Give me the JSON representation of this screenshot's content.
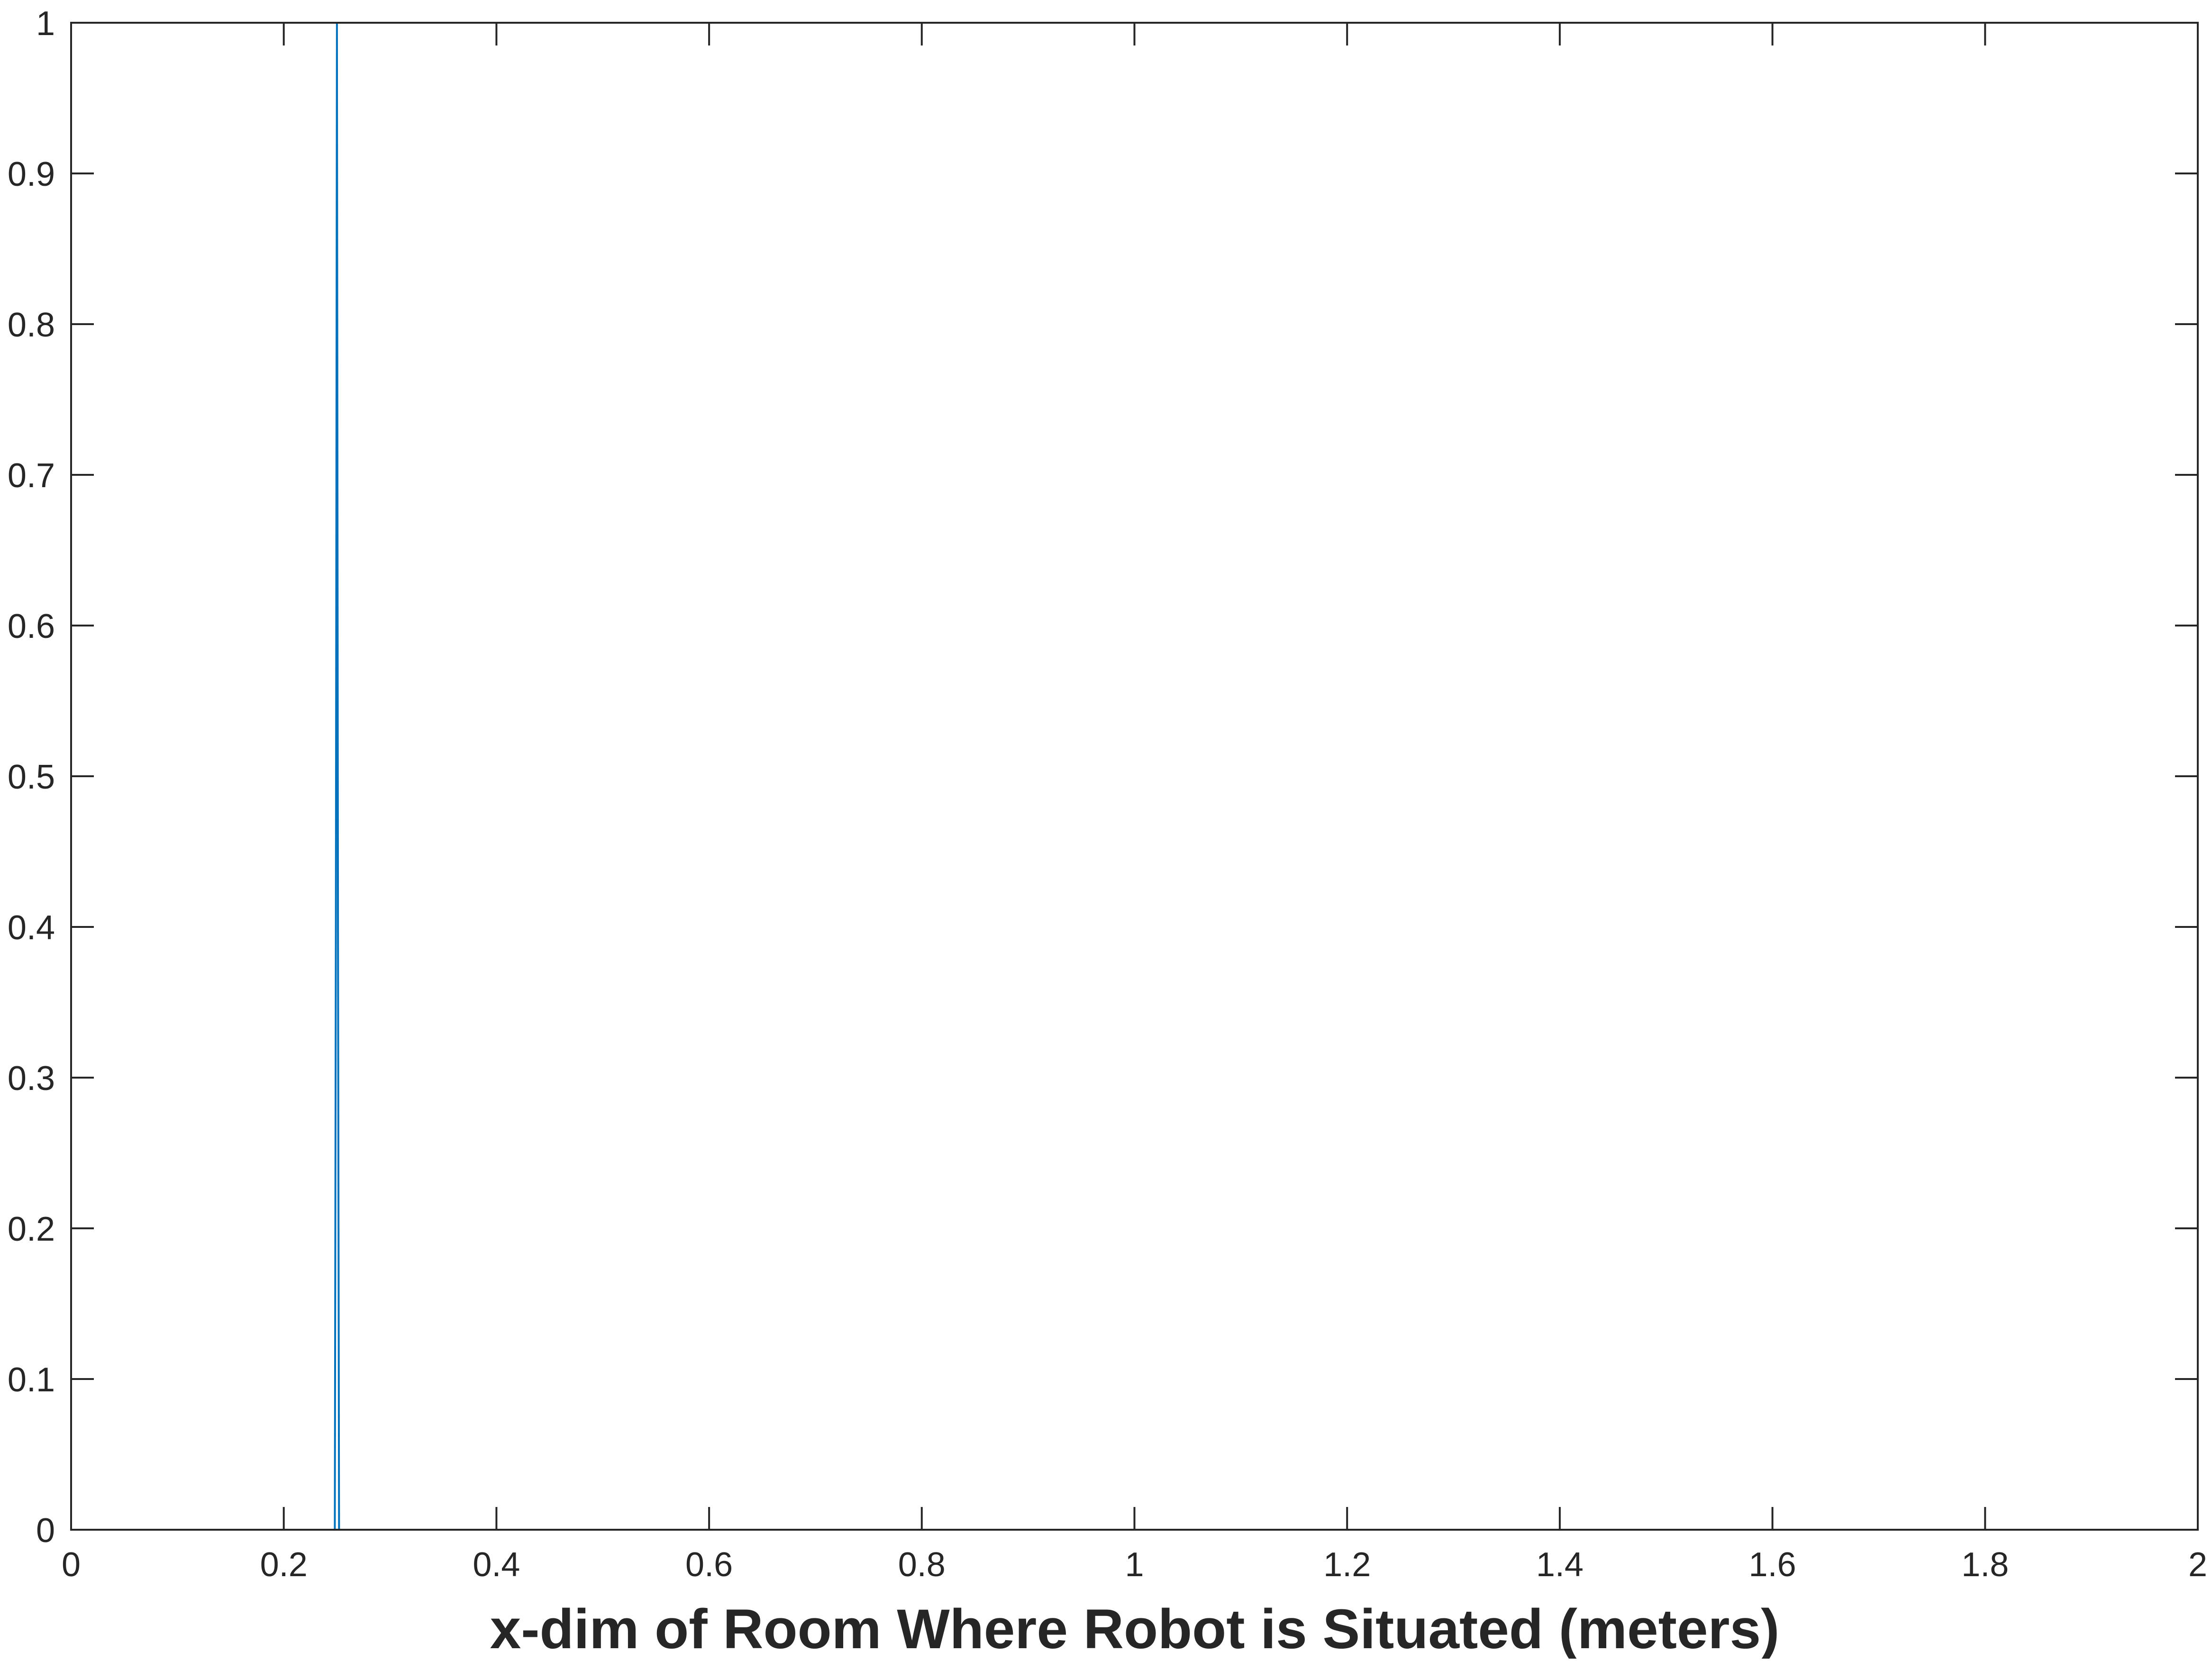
{
  "chart_data": {
    "type": "line",
    "title": "",
    "xlabel": "x-dim of Room Where Robot is Situated (meters)",
    "ylabel": "",
    "xlim": [
      0,
      2
    ],
    "ylim": [
      0,
      1
    ],
    "grid": false,
    "x_ticks": [
      0,
      0.2,
      0.4,
      0.6,
      0.8,
      1,
      1.2,
      1.4,
      1.6,
      1.8,
      2
    ],
    "x_tick_labels": [
      "0",
      "0.2",
      "0.4",
      "0.6",
      "0.8",
      "1",
      "1.2",
      "1.4",
      "1.6",
      "1.8",
      "2"
    ],
    "y_ticks": [
      0,
      0.1,
      0.2,
      0.3,
      0.4,
      0.5,
      0.6,
      0.7,
      0.8,
      0.9,
      1
    ],
    "y_tick_labels": [
      "0",
      "0.1",
      "0.2",
      "0.3",
      "0.4",
      "0.5",
      "0.6",
      "0.7",
      "0.8",
      "0.9",
      "1"
    ],
    "series": [
      {
        "color": "#0072BD",
        "x": [
          0,
          0.248,
          0.249,
          0.25,
          0.251,
          0.252,
          2
        ],
        "y": [
          0,
          0,
          0.4,
          1,
          0.4,
          0,
          0
        ]
      }
    ]
  }
}
